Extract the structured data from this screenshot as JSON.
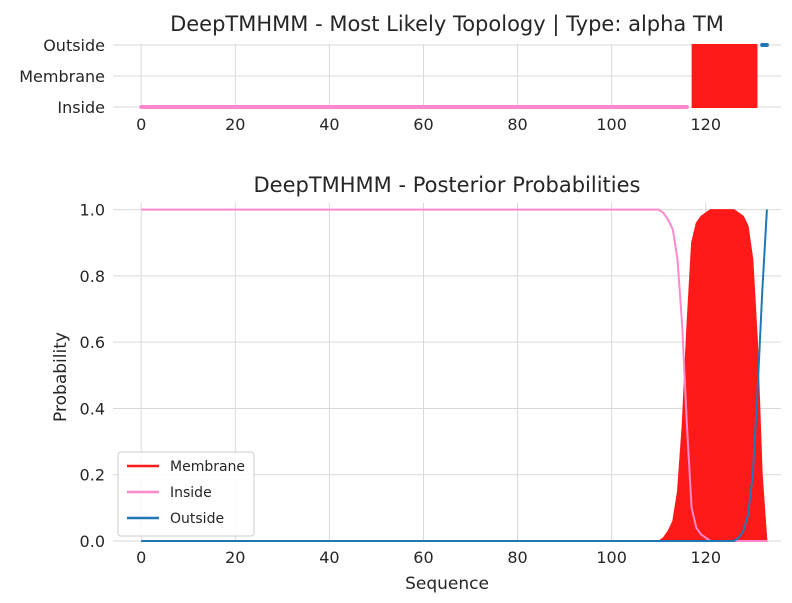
{
  "colors": {
    "membrane": "#ff1a1a",
    "inside": "#ff88cc",
    "outside": "#1f77b4",
    "grid": "#d9d9d9",
    "text": "#262626"
  },
  "chart_data": [
    {
      "type": "line",
      "title": "DeepTMHMM - Most Likely Topology | Type: alpha TM",
      "xlabel": "",
      "ylabel": "",
      "xlim": [
        -6,
        136
      ],
      "xticks": [
        0,
        20,
        40,
        60,
        80,
        100,
        120
      ],
      "ytick_labels": [
        "Inside",
        "Membrane",
        "Outside"
      ],
      "grid": true,
      "segments": [
        {
          "name": "Inside",
          "start": 0,
          "end": 116,
          "level": "Inside"
        },
        {
          "name": "Membrane",
          "start": 117,
          "end": 131,
          "level": "Membrane"
        },
        {
          "name": "Outside",
          "start": 132,
          "end": 133,
          "level": "Outside"
        }
      ]
    },
    {
      "type": "area",
      "title": "DeepTMHMM - Posterior Probabilities",
      "xlabel": "Sequence",
      "ylabel": "Probability",
      "xlim": [
        -6,
        136
      ],
      "ylim": [
        0,
        1.02
      ],
      "xticks": [
        0,
        20,
        40,
        60,
        80,
        100,
        120
      ],
      "yticks": [
        "0.0",
        "0.2",
        "0.4",
        "0.6",
        "0.8",
        "1.0"
      ],
      "grid": true,
      "legend": {
        "placement": "lower-left",
        "entries": [
          "Membrane",
          "Inside",
          "Outside"
        ]
      },
      "series": [
        {
          "name": "Membrane",
          "style": "filled",
          "x": [
            0,
            110,
            111,
            112,
            113,
            114,
            115,
            116,
            117,
            118,
            119,
            120,
            121,
            122,
            123,
            124,
            125,
            126,
            127,
            128,
            129,
            130,
            131,
            132,
            133
          ],
          "y": [
            0,
            0,
            0.01,
            0.03,
            0.06,
            0.15,
            0.35,
            0.65,
            0.9,
            0.96,
            0.98,
            0.99,
            1.0,
            1.0,
            1.0,
            1.0,
            1.0,
            1.0,
            0.99,
            0.98,
            0.95,
            0.85,
            0.6,
            0.2,
            0.0
          ]
        },
        {
          "name": "Inside",
          "style": "line",
          "x": [
            0,
            110,
            111,
            112,
            113,
            114,
            115,
            116,
            117,
            118,
            119,
            120,
            121,
            122,
            123,
            133
          ],
          "y": [
            1.0,
            1.0,
            0.99,
            0.97,
            0.94,
            0.85,
            0.65,
            0.35,
            0.1,
            0.04,
            0.02,
            0.01,
            0.0,
            0.0,
            0.0,
            0.0
          ]
        },
        {
          "name": "Outside",
          "style": "line",
          "x": [
            0,
            126,
            127,
            128,
            129,
            130,
            131,
            132,
            133
          ],
          "y": [
            0.0,
            0.0,
            0.01,
            0.03,
            0.08,
            0.2,
            0.45,
            0.75,
            1.0
          ]
        }
      ]
    }
  ]
}
